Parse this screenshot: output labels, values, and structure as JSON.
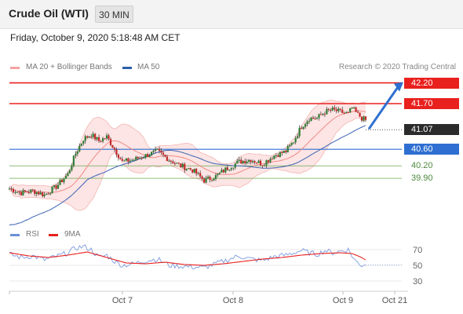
{
  "header": {
    "title": "Crude Oil (WTI)",
    "timeframe": "30 MIN"
  },
  "datetime": "Friday, October 9, 2020 5:18:48 AM CET",
  "legend": {
    "ma20_label": "MA 20 + Bollinger Bands",
    "ma50_label": "MA 50",
    "credit": "Research © 2020 Trading Central"
  },
  "rsi_legend": {
    "rsi_label": "RSI",
    "ma9_label": "9MA"
  },
  "colors": {
    "resistance": "#e8211f",
    "support_major": "#2e6fd1",
    "support_minor": "#6aa84f",
    "ma20": "#e8211f",
    "ma50": "#2e6fd1",
    "band": "#f9cfcd",
    "candle_up": "#2e7d32",
    "candle_down": "#c62828",
    "arrow": "#2e6fd1",
    "current": "#2b2b2b"
  },
  "chart_data": {
    "type": "candlestick",
    "instrument": "Crude Oil (WTI)",
    "interval": "30 MIN",
    "x_ticks": [
      "Oct 7",
      "Oct 8",
      "Oct 9",
      "Oct 21"
    ],
    "ylim": [
      38.9,
      42.4
    ],
    "close_path": [
      [
        0,
        39.65
      ],
      [
        6,
        39.55
      ],
      [
        12,
        39.6
      ],
      [
        18,
        39.5
      ],
      [
        24,
        39.7
      ],
      [
        30,
        40.0
      ],
      [
        34,
        40.5
      ],
      [
        38,
        40.85
      ],
      [
        42,
        40.95
      ],
      [
        46,
        40.8
      ],
      [
        50,
        40.9
      ],
      [
        54,
        40.6
      ],
      [
        58,
        40.3
      ],
      [
        64,
        40.35
      ],
      [
        70,
        40.45
      ],
      [
        76,
        40.55
      ],
      [
        82,
        40.35
      ],
      [
        88,
        40.2
      ],
      [
        94,
        40.1
      ],
      [
        100,
        39.85
      ],
      [
        106,
        39.95
      ],
      [
        112,
        40.15
      ],
      [
        118,
        40.3
      ],
      [
        124,
        40.35
      ],
      [
        130,
        40.25
      ],
      [
        136,
        40.45
      ],
      [
        142,
        40.55
      ],
      [
        146,
        40.8
      ],
      [
        150,
        41.15
      ],
      [
        154,
        41.35
      ],
      [
        158,
        41.35
      ],
      [
        162,
        41.5
      ],
      [
        166,
        41.55
      ],
      [
        170,
        41.5
      ],
      [
        174,
        41.45
      ],
      [
        176,
        41.6
      ],
      [
        178,
        41.48
      ],
      [
        181,
        41.35
      ],
      [
        183,
        41.3
      ]
    ],
    "levels": [
      {
        "label": "42.20",
        "value": 42.2,
        "kind": "resistance"
      },
      {
        "label": "41.70",
        "value": 41.7,
        "kind": "resistance"
      },
      {
        "label": "41.07",
        "value": 41.07,
        "kind": "current"
      },
      {
        "label": "40.60",
        "value": 40.6,
        "kind": "pivot"
      },
      {
        "label": "40.20",
        "value": 40.2,
        "kind": "support"
      },
      {
        "label": "39.90",
        "value": 39.9,
        "kind": "support"
      }
    ],
    "rsi": {
      "ticks": [
        "70",
        "50",
        "30"
      ],
      "ylim": [
        20,
        80
      ],
      "rsi_path": [
        [
          0,
          64
        ],
        [
          6,
          60
        ],
        [
          12,
          62
        ],
        [
          18,
          57
        ],
        [
          24,
          61
        ],
        [
          30,
          66
        ],
        [
          34,
          72
        ],
        [
          38,
          74
        ],
        [
          42,
          70
        ],
        [
          46,
          60
        ],
        [
          50,
          63
        ],
        [
          54,
          55
        ],
        [
          58,
          50
        ],
        [
          64,
          52
        ],
        [
          70,
          56
        ],
        [
          76,
          58
        ],
        [
          82,
          50
        ],
        [
          88,
          49
        ],
        [
          94,
          48
        ],
        [
          100,
          47
        ],
        [
          106,
          52
        ],
        [
          112,
          57
        ],
        [
          118,
          62
        ],
        [
          124,
          58
        ],
        [
          130,
          56
        ],
        [
          136,
          61
        ],
        [
          142,
          63
        ],
        [
          146,
          66
        ],
        [
          150,
          69
        ],
        [
          154,
          66
        ],
        [
          158,
          64
        ],
        [
          162,
          69
        ],
        [
          166,
          66
        ],
        [
          170,
          68
        ],
        [
          174,
          70
        ],
        [
          176,
          62
        ],
        [
          178,
          55
        ],
        [
          181,
          50
        ],
        [
          183,
          52
        ]
      ],
      "ma9_path": [
        [
          0,
          66
        ],
        [
          10,
          62
        ],
        [
          20,
          60
        ],
        [
          30,
          63
        ],
        [
          40,
          67
        ],
        [
          50,
          60
        ],
        [
          60,
          53
        ],
        [
          70,
          52
        ],
        [
          80,
          54
        ],
        [
          90,
          51
        ],
        [
          100,
          50
        ],
        [
          110,
          52
        ],
        [
          120,
          55
        ],
        [
          130,
          58
        ],
        [
          140,
          60
        ],
        [
          150,
          63
        ],
        [
          160,
          65
        ],
        [
          170,
          66
        ],
        [
          176,
          65
        ],
        [
          180,
          61
        ],
        [
          183,
          57
        ]
      ]
    }
  }
}
